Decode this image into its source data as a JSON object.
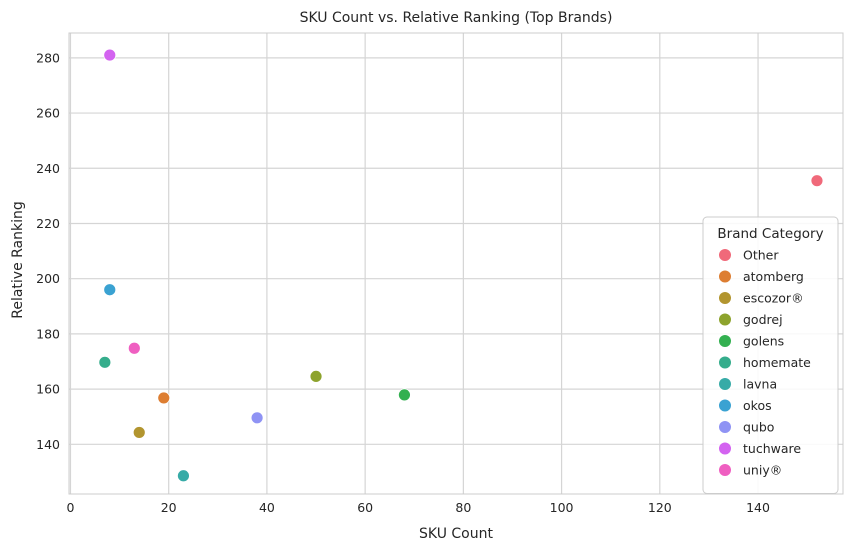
{
  "chart_data": {
    "type": "scatter",
    "title": "SKU Count vs. Relative Ranking (Top Brands)",
    "xlabel": "SKU Count",
    "ylabel": "Relative Ranking",
    "xlim": [
      -0.3,
      157.3
    ],
    "ylim": [
      122,
      289
    ],
    "xticks": [
      0,
      20,
      40,
      60,
      80,
      100,
      120,
      140
    ],
    "yticks": [
      140,
      160,
      180,
      200,
      220,
      240,
      260,
      280
    ],
    "grid": true,
    "legend": {
      "title": "Brand Category",
      "placement": "right"
    },
    "series": [
      {
        "name": "Other",
        "color": "#f0697a",
        "points": [
          {
            "x": 152,
            "y": 235.5
          }
        ]
      },
      {
        "name": "atomberg",
        "color": "#dd7e32",
        "points": [
          {
            "x": 19,
            "y": 156.8
          }
        ]
      },
      {
        "name": "escozor®",
        "color": "#b2952f",
        "points": [
          {
            "x": 14,
            "y": 144.3
          }
        ]
      },
      {
        "name": "godrej",
        "color": "#8da32d",
        "points": [
          {
            "x": 50,
            "y": 164.6
          }
        ]
      },
      {
        "name": "golens",
        "color": "#33b050",
        "points": [
          {
            "x": 68,
            "y": 157.9
          }
        ]
      },
      {
        "name": "homemate",
        "color": "#35ad8c",
        "points": [
          {
            "x": 7,
            "y": 169.7
          }
        ]
      },
      {
        "name": "lavna",
        "color": "#37aba7",
        "points": [
          {
            "x": 23,
            "y": 128.6
          }
        ]
      },
      {
        "name": "okos",
        "color": "#3aa2d2",
        "points": [
          {
            "x": 8,
            "y": 196.0
          }
        ]
      },
      {
        "name": "qubo",
        "color": "#8f93f4",
        "points": [
          {
            "x": 38,
            "y": 149.6
          }
        ]
      },
      {
        "name": "tuchware",
        "color": "#d363f0",
        "points": [
          {
            "x": 8,
            "y": 281.0
          }
        ]
      },
      {
        "name": "uniy®",
        "color": "#ef5fc1",
        "points": [
          {
            "x": 13,
            "y": 174.8
          }
        ]
      }
    ]
  }
}
